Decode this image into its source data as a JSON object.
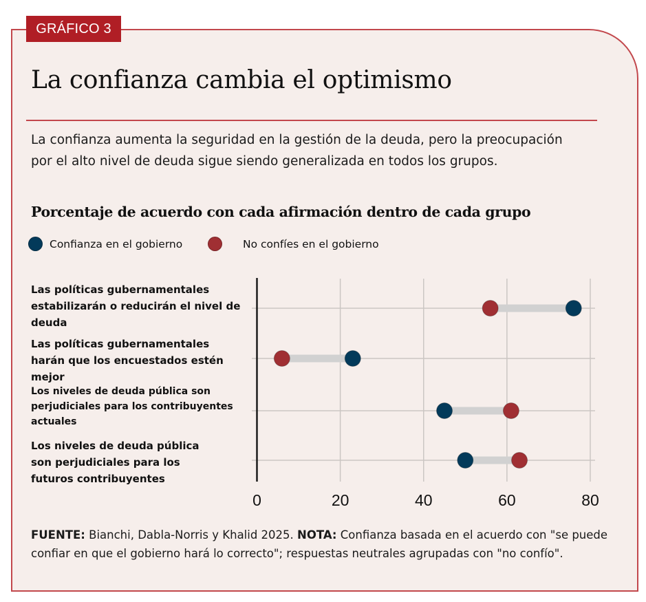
{
  "badge": "GRÁFICO 3",
  "title": "La confianza cambia el optimismo",
  "subtitle": "La confianza aumenta la seguridad en la gestión de la deuda, pero la preocupación por el alto nivel de deuda sigue siendo generalizada en todos los grupos.",
  "chart_title": "Porcentaje de acuerdo con cada afirmación dentro de cada grupo",
  "colors": {
    "trust": "#033a5a",
    "no_trust": "#a02f33",
    "connector": "#d1d1d1",
    "grid": "#cbc6c3",
    "axis": "#1a1a1a",
    "frame": "#c2474c",
    "badge": "#b01e25",
    "background": "#f6eeeb"
  },
  "legend": [
    {
      "label": "Confianza en el gobierno",
      "series": "trust"
    },
    {
      "label": "No confíes en el gobierno",
      "series": "no_trust"
    }
  ],
  "chart_data": {
    "type": "dumbbell",
    "title": "Porcentaje de acuerdo con cada afirmación dentro de cada grupo",
    "xlabel": "",
    "ylabel": "",
    "xlim": [
      0,
      80
    ],
    "x_ticks": [
      0,
      20,
      40,
      60,
      80
    ],
    "x_tick_labels": [
      "0",
      "20",
      "40",
      "60",
      "80"
    ],
    "grid": true,
    "legend_position": "top-left",
    "categories": [
      "Las políticas gubernamentales estabilizarán o reducirán el nivel de deuda",
      "Las políticas gubernamentales harán que los encuestados estén mejor",
      "Los niveles de deuda pública son perjudiciales para los contribuyentes actuales",
      "Los niveles de deuda pública son perjudiciales para los futuros contribuyentes"
    ],
    "series": [
      {
        "name": "Confianza en el gobierno",
        "key": "trust",
        "values": [
          76,
          23,
          45,
          50
        ]
      },
      {
        "name": "No confíes en el gobierno",
        "key": "no_trust",
        "values": [
          56,
          6,
          61,
          63
        ]
      }
    ]
  },
  "row_labels": [
    "Las políticas gubernamentales estabilizarán o reducirán el nivel de deuda",
    "Las políticas gubernamentales harán que los encuestados estén mejor",
    "Los niveles de deuda pública son perjudiciales para los contribuyentes actuales",
    "Los niveles de deuda pública son perjudiciales para los futuros contribuyentes"
  ],
  "footnote": {
    "source_label": "FUENTE:",
    "source_text": " Bianchi, Dabla-Norris y Khalid 2025. ",
    "note_label": "NOTA:",
    "note_text": " Confianza basada en el acuerdo con \"se puede confiar en que el gobierno hará lo correcto\"; respuestas neutrales agrupadas con \"no confío\"."
  }
}
